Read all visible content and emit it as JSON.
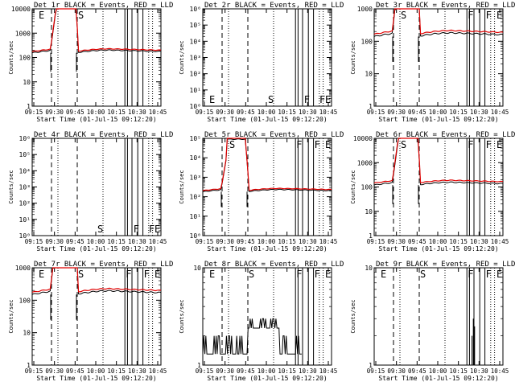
{
  "figure": {
    "x_axis_title": "Start Time (01-Jul-15 09:12:20)",
    "y_axis_title": "Counts/sec",
    "x_tick_labels": [
      "09:15",
      "09:30",
      "09:45",
      "10:00",
      "10:15",
      "10:30",
      "10:45"
    ],
    "colors": {
      "events": "#000000",
      "lld": "#e00000",
      "axis": "#000000"
    }
  },
  "chart_data": [
    {
      "id": "1r",
      "type": "line",
      "title": "Det 1r BLACK = Events, RED = LLD",
      "scale": "log",
      "ylim": [
        1,
        10000
      ],
      "y_tick_labels": [
        "1",
        "10",
        "100",
        "1000",
        "10000"
      ],
      "profile": "flare",
      "events": "flare",
      "base_events": 155,
      "base_lld": 175,
      "markers": [
        {
          "label": "E",
          "t": 0.2
        },
        {
          "label": "S",
          "t": 0.35
        }
      ]
    },
    {
      "id": "2r",
      "type": "line",
      "title": "Det 2r BLACK = Events, RED = LLD",
      "scale": "log",
      "ylim": [
        1,
        1000000
      ],
      "y_tick_labels": [
        "10⁰",
        "10¹",
        "10²",
        "10³",
        "10⁴",
        "10⁵",
        "10⁶"
      ],
      "profile": "empty",
      "events": "none",
      "markers": [
        {
          "label": "E",
          "t": 0.2
        },
        {
          "label": "S",
          "t": 0.5
        },
        {
          "label": "F",
          "t": 0.78
        },
        {
          "label": "F",
          "t": 0.9
        },
        {
          "label": "E",
          "t": 1.04
        }
      ]
    },
    {
      "id": "3r",
      "type": "line",
      "title": "Det 3r BLACK = Events, RED = LLD",
      "scale": "log",
      "ylim": [
        1,
        1000
      ],
      "y_tick_labels": [
        "1",
        "10",
        "100",
        "1000"
      ],
      "profile": "flare",
      "events": "flare",
      "base_events": 140,
      "base_lld": 165,
      "markers": [
        {
          "label": "S",
          "t": 0.2
        },
        {
          "label": "F",
          "t": 0.72
        },
        {
          "label": "F",
          "t": 0.86
        },
        {
          "label": "E",
          "t": 1.0
        }
      ]
    },
    {
      "id": "4r",
      "type": "line",
      "title": "Det 4r BLACK = Events, RED = LLD",
      "scale": "log",
      "ylim": [
        1,
        1000000
      ],
      "y_tick_labels": [
        "10⁰",
        "10¹",
        "10²",
        "10³",
        "10⁴",
        "10⁵",
        "10⁶"
      ],
      "profile": "empty",
      "events": "none",
      "markers": [
        {
          "label": "S",
          "t": 0.5
        },
        {
          "label": "F",
          "t": 0.78
        },
        {
          "label": "F",
          "t": 0.9
        },
        {
          "label": "E",
          "t": 1.04
        }
      ]
    },
    {
      "id": "5r",
      "type": "line",
      "title": "Det 5r BLACK = Events, RED = LLD",
      "scale": "log",
      "ylim": [
        1,
        100000
      ],
      "y_tick_labels": [
        "10⁰",
        "10¹",
        "10²",
        "10³",
        "10⁴",
        "10⁵"
      ],
      "profile": "flare",
      "events": "flare",
      "base_events": 180,
      "base_lld": 205,
      "markers": [
        {
          "label": "S",
          "t": 0.2
        },
        {
          "label": "F",
          "t": 0.72
        },
        {
          "label": "F",
          "t": 0.86
        },
        {
          "label": "E",
          "t": 1.0
        }
      ]
    },
    {
      "id": "6r",
      "type": "line",
      "title": "Det 6r BLACK = Events, RED = LLD",
      "scale": "log",
      "ylim": [
        1,
        10000
      ],
      "y_tick_labels": [
        "1",
        "10",
        "100",
        "1000",
        "10000"
      ],
      "profile": "flare",
      "events": "flare",
      "base_events": 120,
      "base_lld": 145,
      "markers": [
        {
          "label": "S",
          "t": 0.2
        },
        {
          "label": "F",
          "t": 0.72
        },
        {
          "label": "F",
          "t": 0.86
        },
        {
          "label": "E",
          "t": 1.0
        }
      ]
    },
    {
      "id": "7r",
      "type": "line",
      "title": "Det 7r BLACK = Events, RED = LLD",
      "scale": "log",
      "ylim": [
        1,
        1000
      ],
      "y_tick_labels": [
        "1",
        "10",
        "100",
        "1000"
      ],
      "profile": "flare",
      "events": "flare",
      "base_events": 150,
      "base_lld": 175,
      "markers": [
        {
          "label": "E",
          "t": 0.2
        },
        {
          "label": "S",
          "t": 0.35
        },
        {
          "label": "F",
          "t": 0.72
        },
        {
          "label": "F",
          "t": 0.86
        },
        {
          "label": "E",
          "t": 1.0
        }
      ]
    },
    {
      "id": "8r",
      "type": "line",
      "title": "Det 8r BLACK = Events, RED = LLD",
      "scale": "log",
      "ylim": [
        1,
        10
      ],
      "y_tick_labels": [
        "1",
        "10"
      ],
      "profile": "noise",
      "events": "noise",
      "markers": [
        {
          "label": "E",
          "t": 0.2
        },
        {
          "label": "S",
          "t": 0.35
        },
        {
          "label": "F",
          "t": 0.72
        },
        {
          "label": "F",
          "t": 0.86
        },
        {
          "label": "E",
          "t": 1.0
        }
      ]
    },
    {
      "id": "9r",
      "type": "line",
      "title": "Det 9r BLACK = Events, RED = LLD",
      "scale": "log",
      "ylim": [
        1,
        10
      ],
      "y_tick_labels": [
        "1",
        "10"
      ],
      "profile": "sparse",
      "events": "sparse",
      "markers": [
        {
          "label": "E",
          "t": 0.2
        },
        {
          "label": "S",
          "t": 0.35
        },
        {
          "label": "F",
          "t": 0.72
        },
        {
          "label": "F",
          "t": 0.86
        },
        {
          "label": "E",
          "t": 1.0
        }
      ]
    }
  ]
}
